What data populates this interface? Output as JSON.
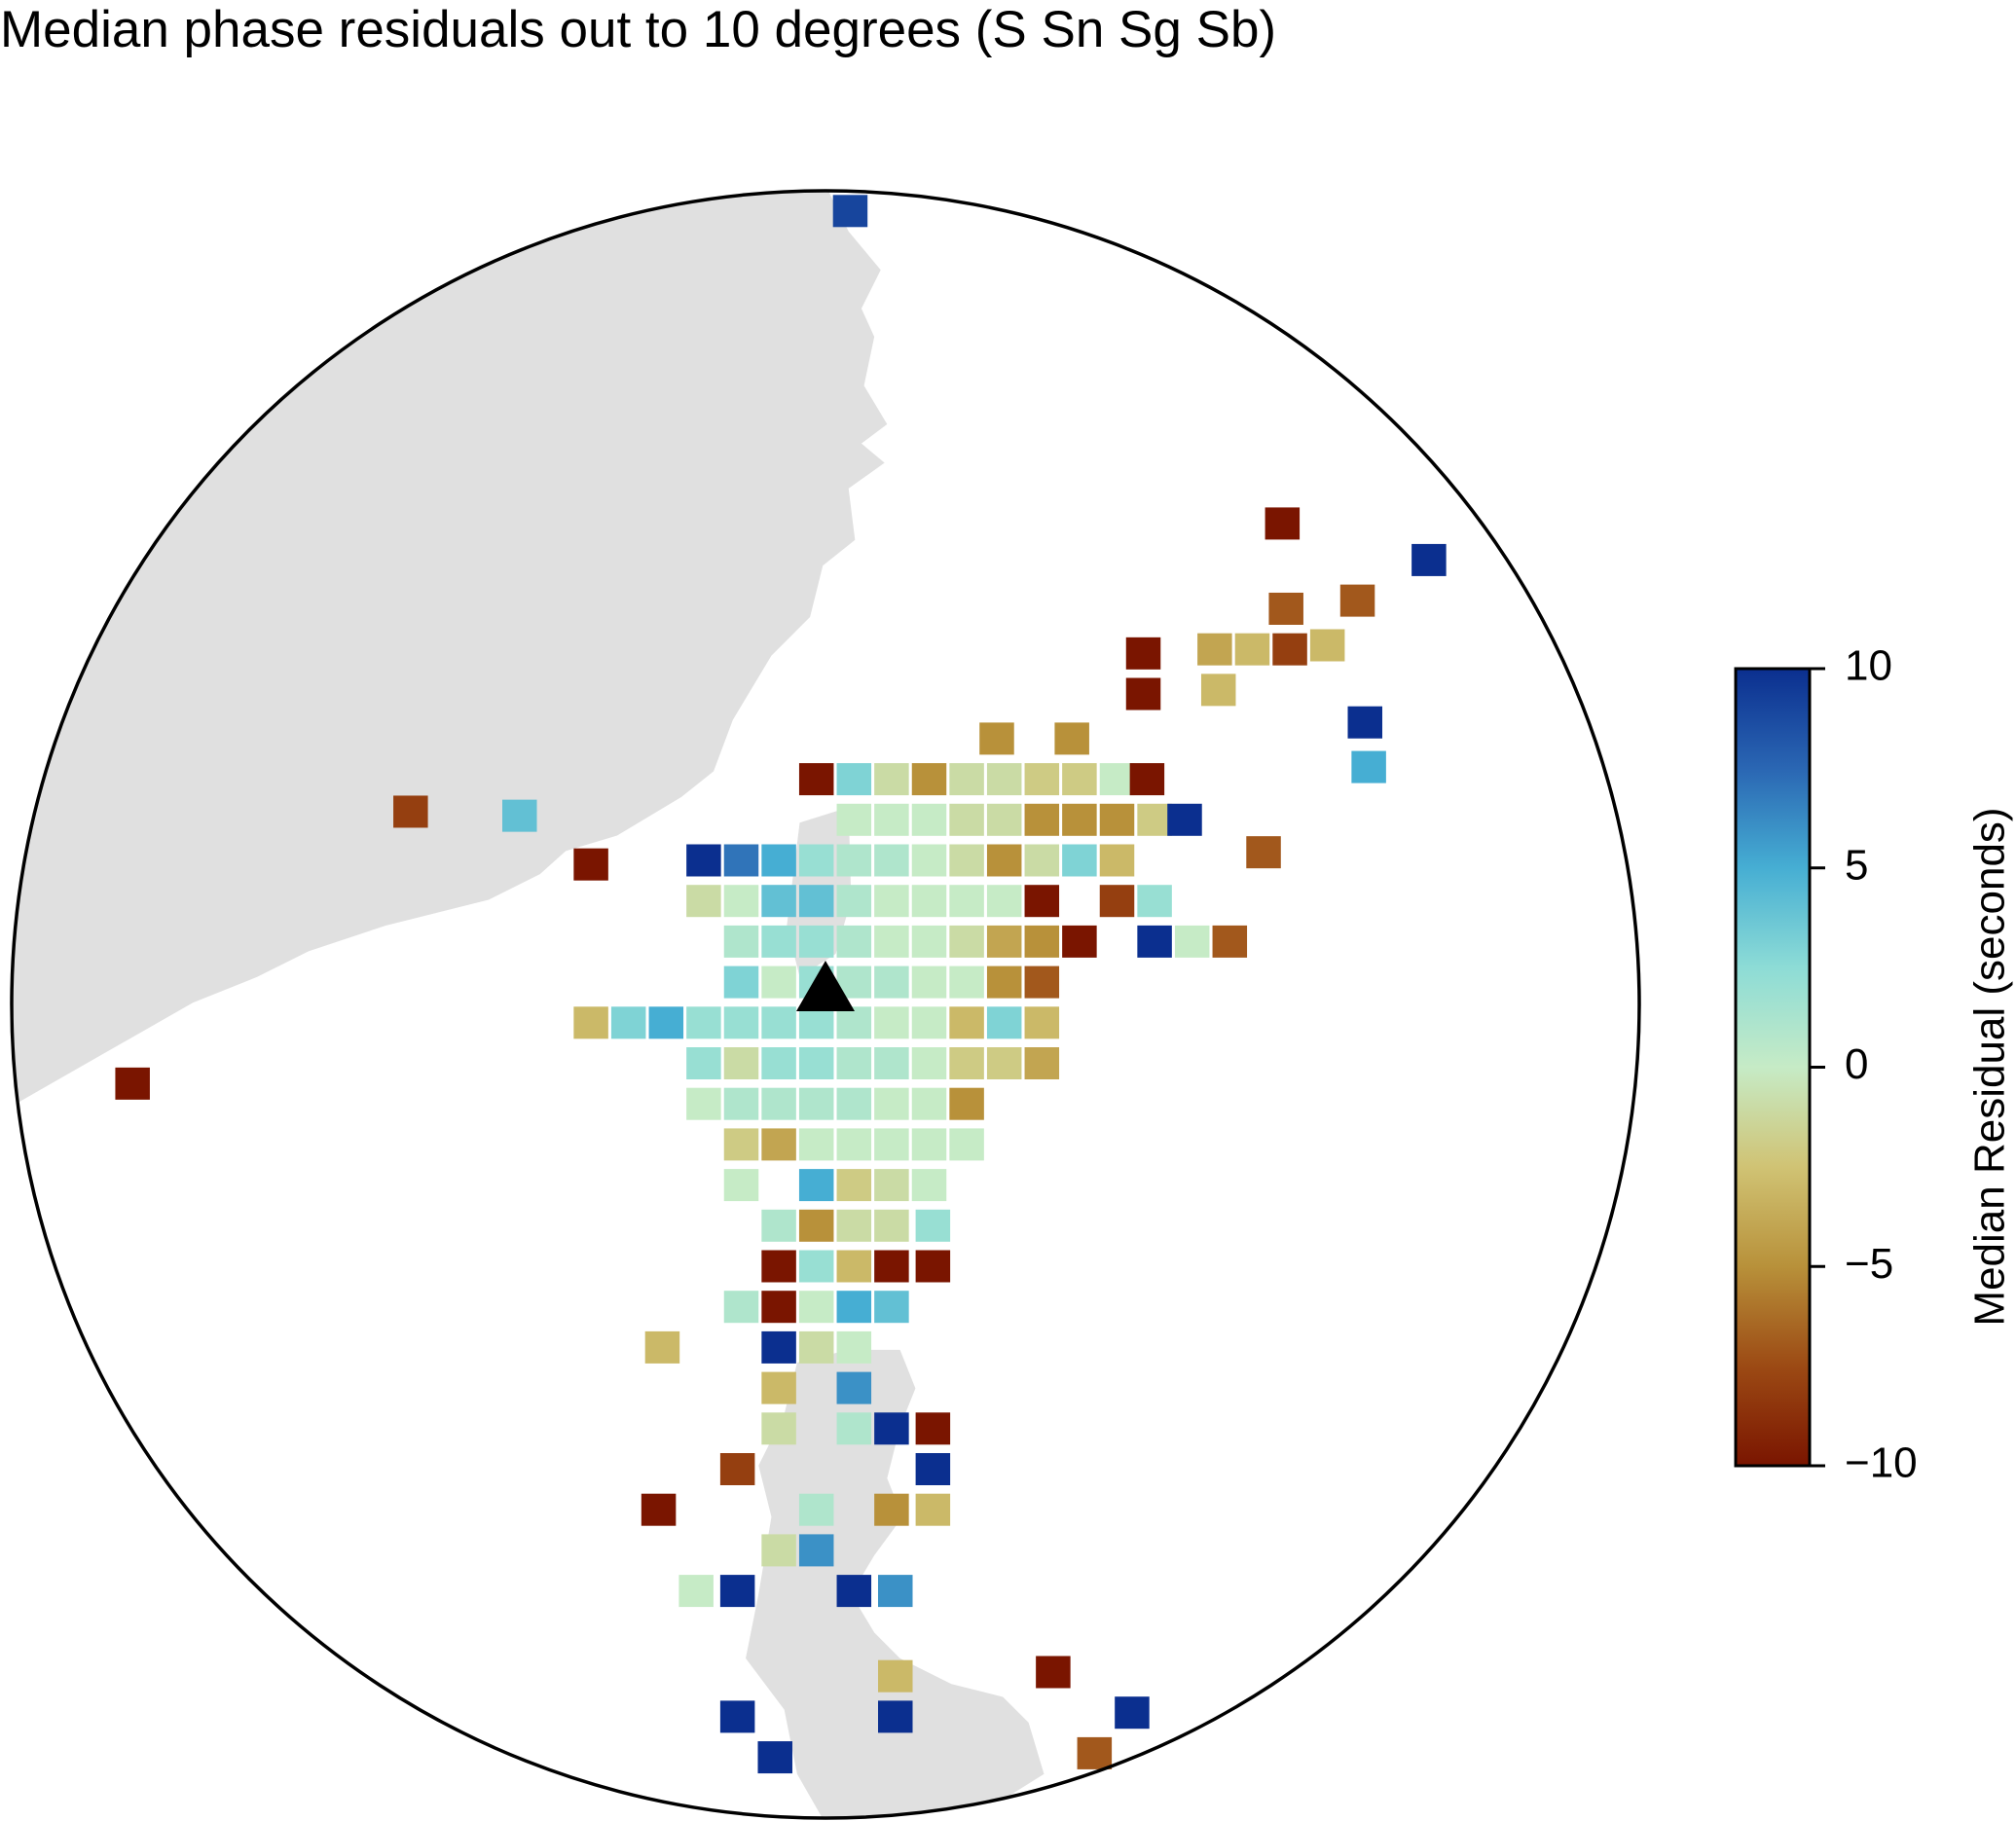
{
  "chart_data": {
    "type": "grid-map",
    "title": "Median phase residuals out to 10 degrees (S Sn Sg Sb)",
    "colorbar_label": "Median Residual (seconds)",
    "clim": [
      -10,
      10
    ],
    "cticks": [
      {
        "value": 10,
        "label": "10"
      },
      {
        "value": 5,
        "label": "5"
      },
      {
        "value": 0,
        "label": "0"
      },
      {
        "value": -5,
        "label": "−5"
      },
      {
        "value": -10,
        "label": "−10"
      }
    ],
    "points": [
      {
        "x": 0.9,
        "y": -19,
        "value": 9
      },
      {
        "x": 12.4,
        "y": -11.3,
        "value": -10
      },
      {
        "x": 16.3,
        "y": -10.4,
        "value": 10
      },
      {
        "x": 12.5,
        "y": -9.2,
        "value": -7
      },
      {
        "x": 14.4,
        "y": -9.4,
        "value": -7
      },
      {
        "x": 8.7,
        "y": -8.1,
        "value": -10
      },
      {
        "x": 10.6,
        "y": -8.2,
        "value": -4
      },
      {
        "x": 11.6,
        "y": -8.2,
        "value": -3
      },
      {
        "x": 12.6,
        "y": -8.2,
        "value": -8
      },
      {
        "x": 13.6,
        "y": -8.3,
        "value": -3
      },
      {
        "x": 8.7,
        "y": -7.1,
        "value": -10
      },
      {
        "x": 10.7,
        "y": -7.2,
        "value": -3
      },
      {
        "x": 14.6,
        "y": -6.4,
        "value": 10
      },
      {
        "x": 14.7,
        "y": -5.3,
        "value": 5
      },
      {
        "x": 4.8,
        "y": -6,
        "value": -5
      },
      {
        "x": 6.8,
        "y": -6,
        "value": -5
      },
      {
        "x": 11.9,
        "y": -3.2,
        "value": -7
      },
      {
        "x": -10.8,
        "y": -4.2,
        "value": -8
      },
      {
        "x": -7.9,
        "y": -4.1,
        "value": 4
      },
      {
        "x": -18.2,
        "y": 2.5,
        "value": -10
      },
      {
        "x": -6,
        "y": -2.9,
        "value": -10
      },
      {
        "x": 0,
        "y": -5,
        "value": -10
      },
      {
        "x": 1,
        "y": -5,
        "value": 3
      },
      {
        "x": 2,
        "y": -5,
        "value": -1
      },
      {
        "x": 3,
        "y": -5,
        "value": -5
      },
      {
        "x": 4,
        "y": -5,
        "value": -1
      },
      {
        "x": 5,
        "y": -5,
        "value": -1
      },
      {
        "x": 6,
        "y": -5,
        "value": -2
      },
      {
        "x": 7,
        "y": -5,
        "value": -2
      },
      {
        "x": 8,
        "y": -5,
        "value": 0
      },
      {
        "x": 8.8,
        "y": -5,
        "value": -10
      },
      {
        "x": 1,
        "y": -4,
        "value": 0
      },
      {
        "x": 2,
        "y": -4,
        "value": 0
      },
      {
        "x": 3,
        "y": -4,
        "value": 0
      },
      {
        "x": 4,
        "y": -4,
        "value": -1
      },
      {
        "x": 5,
        "y": -4,
        "value": -1
      },
      {
        "x": 6,
        "y": -4,
        "value": -5
      },
      {
        "x": 7,
        "y": -4,
        "value": -5
      },
      {
        "x": 8,
        "y": -4,
        "value": -5
      },
      {
        "x": 9,
        "y": -4,
        "value": -2
      },
      {
        "x": 9.8,
        "y": -4,
        "value": 10
      },
      {
        "x": -3,
        "y": -3,
        "value": 10
      },
      {
        "x": -2,
        "y": -3,
        "value": 7
      },
      {
        "x": -1,
        "y": -3,
        "value": 5
      },
      {
        "x": 0,
        "y": -3,
        "value": 2
      },
      {
        "x": 1,
        "y": -3,
        "value": 1
      },
      {
        "x": 2,
        "y": -3,
        "value": 1
      },
      {
        "x": 3,
        "y": -3,
        "value": 0
      },
      {
        "x": 4,
        "y": -3,
        "value": -1
      },
      {
        "x": 5,
        "y": -3,
        "value": -5
      },
      {
        "x": 6,
        "y": -3,
        "value": -1
      },
      {
        "x": 7,
        "y": -3,
        "value": 3
      },
      {
        "x": 8,
        "y": -3,
        "value": -3
      },
      {
        "x": -3,
        "y": -2,
        "value": -1
      },
      {
        "x": -2,
        "y": -2,
        "value": 0
      },
      {
        "x": -1,
        "y": -2,
        "value": 4
      },
      {
        "x": 0,
        "y": -2,
        "value": 4
      },
      {
        "x": 1,
        "y": -2,
        "value": 1
      },
      {
        "x": 2,
        "y": -2,
        "value": 0
      },
      {
        "x": 3,
        "y": -2,
        "value": 0
      },
      {
        "x": 4,
        "y": -2,
        "value": 0
      },
      {
        "x": 5,
        "y": -2,
        "value": 0
      },
      {
        "x": 6,
        "y": -2,
        "value": -10
      },
      {
        "x": 8,
        "y": -2,
        "value": -8
      },
      {
        "x": 9,
        "y": -2,
        "value": 2
      },
      {
        "x": -2,
        "y": -1,
        "value": 1
      },
      {
        "x": -1,
        "y": -1,
        "value": 2
      },
      {
        "x": 0,
        "y": -1,
        "value": 2
      },
      {
        "x": 1,
        "y": -1,
        "value": 1
      },
      {
        "x": 2,
        "y": -1,
        "value": 0
      },
      {
        "x": 3,
        "y": -1,
        "value": 0
      },
      {
        "x": 4,
        "y": -1,
        "value": -1
      },
      {
        "x": 5,
        "y": -1,
        "value": -4
      },
      {
        "x": 6,
        "y": -1,
        "value": -5
      },
      {
        "x": 7,
        "y": -1,
        "value": -10
      },
      {
        "x": 9,
        "y": -1,
        "value": 10
      },
      {
        "x": 10,
        "y": -1,
        "value": 0
      },
      {
        "x": 11,
        "y": -1,
        "value": -7
      },
      {
        "x": -2,
        "y": 0,
        "value": 3
      },
      {
        "x": -1,
        "y": 0,
        "value": 0
      },
      {
        "x": 0,
        "y": 0,
        "value": 2
      },
      {
        "x": 1,
        "y": 0,
        "value": 1
      },
      {
        "x": 2,
        "y": 0,
        "value": 1
      },
      {
        "x": 3,
        "y": 0,
        "value": 0
      },
      {
        "x": 4,
        "y": 0,
        "value": 0
      },
      {
        "x": 5,
        "y": 0,
        "value": -5
      },
      {
        "x": 6,
        "y": 0,
        "value": -7
      },
      {
        "x": -6,
        "y": 1,
        "value": -3
      },
      {
        "x": -5,
        "y": 1,
        "value": 3
      },
      {
        "x": -4,
        "y": 1,
        "value": 5
      },
      {
        "x": -3,
        "y": 1,
        "value": 2
      },
      {
        "x": -2,
        "y": 1,
        "value": 2
      },
      {
        "x": -1,
        "y": 1,
        "value": 2
      },
      {
        "x": 0,
        "y": 1,
        "value": 2
      },
      {
        "x": 1,
        "y": 1,
        "value": 1
      },
      {
        "x": 2,
        "y": 1,
        "value": 0
      },
      {
        "x": 3,
        "y": 1,
        "value": 0
      },
      {
        "x": 4,
        "y": 1,
        "value": -3
      },
      {
        "x": 5,
        "y": 1,
        "value": 3
      },
      {
        "x": 6,
        "y": 1,
        "value": -3
      },
      {
        "x": -3,
        "y": 2,
        "value": 2
      },
      {
        "x": -2,
        "y": 2,
        "value": -1
      },
      {
        "x": -1,
        "y": 2,
        "value": 2
      },
      {
        "x": 0,
        "y": 2,
        "value": 2
      },
      {
        "x": 1,
        "y": 2,
        "value": 1
      },
      {
        "x": 2,
        "y": 2,
        "value": 1
      },
      {
        "x": 3,
        "y": 2,
        "value": 0
      },
      {
        "x": 4,
        "y": 2,
        "value": -2
      },
      {
        "x": 5,
        "y": 2,
        "value": -2
      },
      {
        "x": 6,
        "y": 2,
        "value": -4
      },
      {
        "x": -3,
        "y": 3,
        "value": 0
      },
      {
        "x": -2,
        "y": 3,
        "value": 1
      },
      {
        "x": -1,
        "y": 3,
        "value": 1
      },
      {
        "x": 0,
        "y": 3,
        "value": 1
      },
      {
        "x": 1,
        "y": 3,
        "value": 1
      },
      {
        "x": 2,
        "y": 3,
        "value": 0
      },
      {
        "x": 3,
        "y": 3,
        "value": 0
      },
      {
        "x": 4,
        "y": 3,
        "value": -5
      },
      {
        "x": -2,
        "y": 4,
        "value": -2
      },
      {
        "x": -1,
        "y": 4,
        "value": -4
      },
      {
        "x": 0,
        "y": 4,
        "value": 0
      },
      {
        "x": 1,
        "y": 4,
        "value": 0
      },
      {
        "x": 2,
        "y": 4,
        "value": 0
      },
      {
        "x": 3,
        "y": 4,
        "value": 0
      },
      {
        "x": 4,
        "y": 4,
        "value": 0
      },
      {
        "x": -2,
        "y": 5,
        "value": 0
      },
      {
        "x": 0,
        "y": 5,
        "value": 5
      },
      {
        "x": 1,
        "y": 5,
        "value": -2
      },
      {
        "x": 2,
        "y": 5,
        "value": -1
      },
      {
        "x": 3,
        "y": 5,
        "value": 0
      },
      {
        "x": -1,
        "y": 6,
        "value": 1
      },
      {
        "x": 0,
        "y": 6,
        "value": -5
      },
      {
        "x": 1,
        "y": 6,
        "value": -1
      },
      {
        "x": 2,
        "y": 6,
        "value": -1
      },
      {
        "x": 3.1,
        "y": 6,
        "value": 2
      },
      {
        "x": -1,
        "y": 7,
        "value": -10
      },
      {
        "x": 0,
        "y": 7,
        "value": 2
      },
      {
        "x": 1,
        "y": 7,
        "value": -3
      },
      {
        "x": 2,
        "y": 7,
        "value": -10
      },
      {
        "x": 3.1,
        "y": 7,
        "value": -10
      },
      {
        "x": -2,
        "y": 8,
        "value": 1
      },
      {
        "x": -1,
        "y": 8,
        "value": -10
      },
      {
        "x": 0,
        "y": 8,
        "value": 0
      },
      {
        "x": 1,
        "y": 8,
        "value": 5
      },
      {
        "x": 2,
        "y": 8,
        "value": 4
      },
      {
        "x": -4.1,
        "y": 9,
        "value": -3
      },
      {
        "x": -1,
        "y": 9,
        "value": 10
      },
      {
        "x": 0,
        "y": 9,
        "value": -1
      },
      {
        "x": 1,
        "y": 9,
        "value": 0
      },
      {
        "x": -1,
        "y": 10,
        "value": -3
      },
      {
        "x": 1,
        "y": 10,
        "value": 6
      },
      {
        "x": -1,
        "y": 11,
        "value": -1
      },
      {
        "x": 1,
        "y": 11,
        "value": 1
      },
      {
        "x": 2,
        "y": 11,
        "value": 10
      },
      {
        "x": 3.1,
        "y": 11,
        "value": -10
      },
      {
        "x": -2.1,
        "y": 12,
        "value": -8
      },
      {
        "x": 3.1,
        "y": 12,
        "value": 10
      },
      {
        "x": -4.2,
        "y": 13,
        "value": -10
      },
      {
        "x": 0,
        "y": 13,
        "value": 1
      },
      {
        "x": 2,
        "y": 13,
        "value": -5
      },
      {
        "x": 3.1,
        "y": 13,
        "value": -3
      },
      {
        "x": -1,
        "y": 14,
        "value": -1
      },
      {
        "x": 0,
        "y": 14,
        "value": 6
      },
      {
        "x": -3.2,
        "y": 15,
        "value": 0
      },
      {
        "x": -2.1,
        "y": 15,
        "value": 10
      },
      {
        "x": 1,
        "y": 15,
        "value": 10
      },
      {
        "x": 2.1,
        "y": 15,
        "value": 6
      },
      {
        "x": 2.1,
        "y": 17.1,
        "value": -3
      },
      {
        "x": 6.3,
        "y": 17,
        "value": -10
      },
      {
        "x": -2.1,
        "y": 18.1,
        "value": 10
      },
      {
        "x": 2.1,
        "y": 18.1,
        "value": 10
      },
      {
        "x": 8.4,
        "y": 18,
        "value": 10
      },
      {
        "x": -1.1,
        "y": 19.1,
        "value": 10
      },
      {
        "x": 7.4,
        "y": 19,
        "value": -7
      }
    ]
  }
}
